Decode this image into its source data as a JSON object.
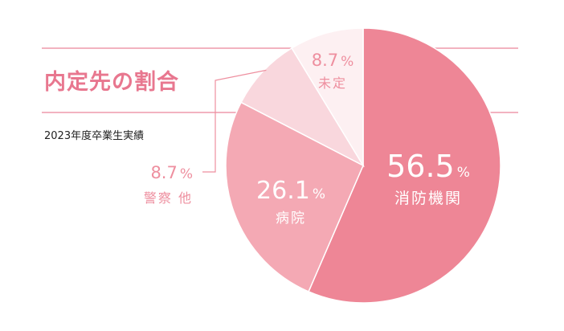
{
  "header": {
    "title": "内定先の割合",
    "subtitle": "2023年度卒業生実績"
  },
  "colors": {
    "accent": "#e8778f",
    "rule": "#ee9aab",
    "text_dark": "#222222",
    "slice_fire": "#ee8696",
    "slice_hospital": "#f4a9b4",
    "slice_police": "#f9d7dd",
    "slice_undecided": "#fdf0f2",
    "label_on_dark": "#ffffff",
    "label_on_light": "#ee8f9f"
  },
  "chart_data": {
    "type": "pie",
    "title": "内定先の割合",
    "subtitle": "2023年度卒業生実績",
    "slices": [
      {
        "label": "消防機関",
        "value": 56.5,
        "value_text": "56.5",
        "unit": "%",
        "color": "#ee8696"
      },
      {
        "label": "病院",
        "value": 26.1,
        "value_text": "26.1",
        "unit": "%",
        "color": "#f4a9b4"
      },
      {
        "label": "警察 他",
        "value": 8.7,
        "value_text": "8.7",
        "unit": "%",
        "color": "#f9d7dd"
      },
      {
        "label": "未定",
        "value": 8.7,
        "value_text": "8.7",
        "unit": "%",
        "color": "#fdf0f2"
      }
    ],
    "start": "12 o'clock",
    "direction": "clockwise"
  }
}
